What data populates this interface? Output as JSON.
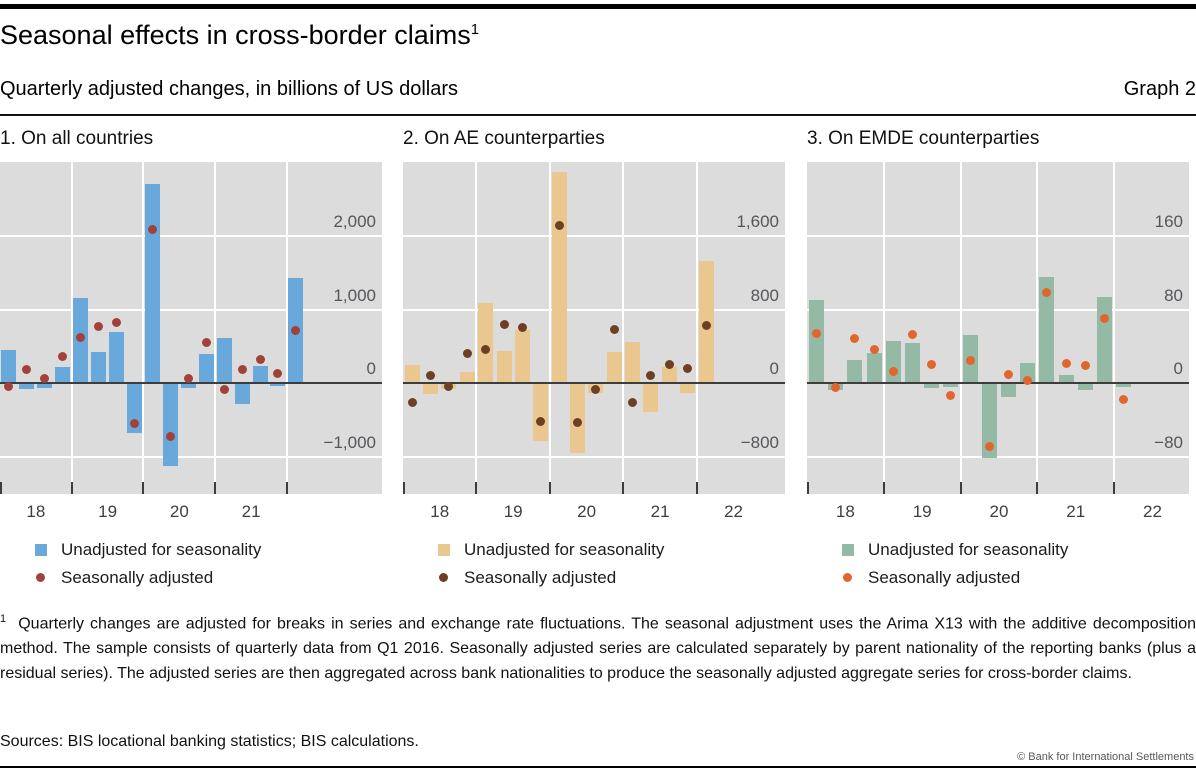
{
  "header": {
    "title": "Seasonal effects in cross-border claims",
    "title_superscript": "1",
    "subtitle": "Quarterly adjusted changes, in billions of US dollars",
    "graph_label": "Graph 2"
  },
  "chart_data": [
    {
      "type": "bar",
      "panel_title": "1. On all countries",
      "categories": [
        "2018-Q1",
        "2018-Q2",
        "2018-Q3",
        "2018-Q4",
        "2019-Q1",
        "2019-Q2",
        "2019-Q3",
        "2019-Q4",
        "2020-Q1",
        "2020-Q2",
        "2020-Q3",
        "2020-Q4",
        "2021-Q1",
        "2021-Q2",
        "2021-Q3",
        "2021-Q4",
        "2022-Q1"
      ],
      "series": [
        {
          "name": "Unadjusted for seasonality",
          "style": "bar",
          "color": "#68a8da",
          "values": [
            450,
            -80,
            -60,
            220,
            1150,
            430,
            700,
            -680,
            2700,
            -1120,
            -60,
            400,
            620,
            -280,
            240,
            -40,
            1430
          ]
        },
        {
          "name": "Seasonally adjusted",
          "style": "dot",
          "color": "#a2413a",
          "values": [
            -40,
            190,
            70,
            360,
            620,
            770,
            830,
            -540,
            2080,
            -720,
            60,
            560,
            -80,
            190,
            320,
            130,
            720
          ]
        }
      ],
      "ylim": [
        -1500,
        3000
      ],
      "yticks": [
        {
          "value": -1000,
          "label": "−1,000"
        },
        {
          "value": 0,
          "label": "0"
        },
        {
          "value": 1000,
          "label": "1,000"
        },
        {
          "value": 2000,
          "label": "2,000"
        }
      ],
      "x_year_labels": [
        "18",
        "19",
        "20",
        "21"
      ],
      "x_slots": 21.3,
      "grid": "on",
      "legend_position": "bottom-left"
    },
    {
      "type": "bar",
      "panel_title": "2. On AE counterparties",
      "categories": [
        "2018-Q1",
        "2018-Q2",
        "2018-Q3",
        "2018-Q4",
        "2019-Q1",
        "2019-Q2",
        "2019-Q3",
        "2019-Q4",
        "2020-Q1",
        "2020-Q2",
        "2020-Q3",
        "2020-Q4",
        "2021-Q1",
        "2021-Q2",
        "2021-Q3",
        "2021-Q4",
        "2022-Q1"
      ],
      "series": [
        {
          "name": "Unadjusted for seasonality",
          "style": "bar",
          "color": "#e9c78f",
          "values": [
            200,
            -120,
            -65,
            125,
            870,
            355,
            580,
            -620,
            2290,
            -760,
            -100,
            340,
            445,
            -315,
            180,
            -100,
            1330
          ]
        },
        {
          "name": "Seasonally adjusted",
          "style": "dot",
          "color": "#6e3f22",
          "values": [
            -205,
            90,
            -30,
            320,
            365,
            640,
            605,
            -415,
            1715,
            -420,
            -65,
            585,
            -210,
            80,
            205,
            160,
            630
          ]
        }
      ],
      "ylim": [
        -1200,
        2400
      ],
      "yticks": [
        {
          "value": -800,
          "label": "−800"
        },
        {
          "value": 0,
          "label": "0"
        },
        {
          "value": 800,
          "label": "800"
        },
        {
          "value": 1600,
          "label": "1,600"
        }
      ],
      "x_year_labels": [
        "18",
        "19",
        "20",
        "21",
        "22"
      ],
      "x_slots": 20.8,
      "grid": "on",
      "legend_position": "bottom-left"
    },
    {
      "type": "bar",
      "panel_title": "3. On EMDE counterparties",
      "categories": [
        "2018-Q1",
        "2018-Q2",
        "2018-Q3",
        "2018-Q4",
        "2019-Q1",
        "2019-Q2",
        "2019-Q3",
        "2019-Q4",
        "2020-Q1",
        "2020-Q2",
        "2020-Q3",
        "2020-Q4",
        "2021-Q1",
        "2021-Q2",
        "2021-Q3",
        "2021-Q4",
        "2022-Q1"
      ],
      "series": [
        {
          "name": "Unadjusted for seasonality",
          "style": "bar",
          "color": "#94b9a4",
          "values": [
            90,
            -7,
            25,
            33,
            46,
            44,
            -5,
            -4,
            52,
            -81,
            -15,
            22,
            115,
            9,
            -7,
            94,
            -4
          ]
        },
        {
          "name": "Seasonally adjusted",
          "style": "dot",
          "color": "#e1662d",
          "values": [
            54,
            -5,
            49,
            37,
            13,
            53,
            20,
            -13,
            25,
            -69,
            10,
            3,
            98,
            22,
            19,
            70,
            -17
          ]
        }
      ],
      "ylim": [
        -120,
        240
      ],
      "yticks": [
        {
          "value": -80,
          "label": "−80"
        },
        {
          "value": 0,
          "label": "0"
        },
        {
          "value": 80,
          "label": "80"
        },
        {
          "value": 160,
          "label": "160"
        }
      ],
      "x_year_labels": [
        "18",
        "19",
        "20",
        "21",
        "22"
      ],
      "x_slots": 19.9,
      "grid": "on",
      "legend_position": "bottom-left"
    }
  ],
  "footnote": {
    "marker": "1",
    "text": "Quarterly changes are adjusted for breaks in series and exchange rate fluctuations. The seasonal adjustment uses the Arima X13 with the additive decomposition method. The sample consists of quarterly data from Q1 2016. Seasonally adjusted series are calculated separately by parent nationality of the reporting banks (plus a residual series). The adjusted series are then aggregated across bank nationalities to produce the seasonally adjusted aggregate series for cross-border claims."
  },
  "sources": "Sources: BIS locational banking statistics; BIS calculations.",
  "copyright": "© Bank for International Settlements"
}
